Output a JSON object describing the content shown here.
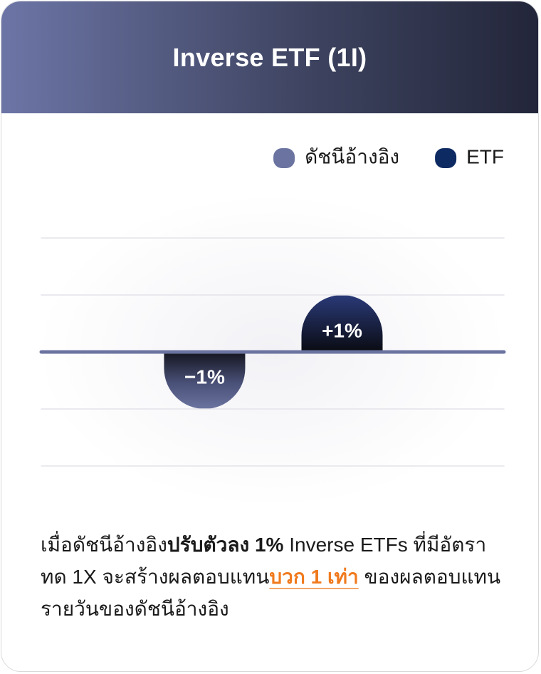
{
  "chart_data": {
    "type": "bar",
    "title": "Inverse ETF (1I)",
    "categories": [
      null,
      null
    ],
    "series": [
      {
        "name": "ดัชนีอ้างอิง",
        "color": "#6b74a0",
        "values": [
          -1,
          null
        ],
        "value_labels": [
          "−1%",
          null
        ]
      },
      {
        "name": "ETF",
        "color": "#0d2a63",
        "values": [
          null,
          1
        ],
        "value_labels": [
          null,
          "+1%"
        ]
      }
    ],
    "ylim": [
      -2,
      2
    ],
    "yticks": [
      -2,
      -1,
      0,
      1,
      2
    ],
    "grid": true,
    "legend": "top-right"
  },
  "description": [
    {
      "text": "เมื่อดัชนีอ้างอิง",
      "style": "normal"
    },
    {
      "text": "ปรับตัวลง 1%",
      "style": "bold"
    },
    {
      "text": " Inverse ETFs ที่มีอัตราทด 1X จะสร้างผลตอบแทน",
      "style": "normal"
    },
    {
      "text": "บวก 1 เท่า",
      "style": "highlight"
    },
    {
      "text": " ของผลตอบแทนรายวันของดัชนีอ้างอิง",
      "style": "normal"
    }
  ]
}
